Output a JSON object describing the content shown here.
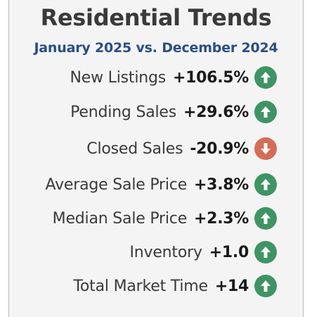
{
  "title": "Residential Trends",
  "subtitle": "January 2025 vs. December 2024",
  "colors": {
    "up": "#3f9463",
    "down": "#d56c56",
    "subtitle": "#2a4e86"
  },
  "metrics": [
    {
      "label": "New Listings",
      "value": "+106.5%",
      "direction": "up",
      "icon": "arrow-up-icon"
    },
    {
      "label": "Pending Sales",
      "value": "+29.6%",
      "direction": "up",
      "icon": "arrow-up-icon"
    },
    {
      "label": "Closed Sales",
      "value": "-20.9%",
      "direction": "down",
      "icon": "arrow-down-icon"
    },
    {
      "label": "Average Sale Price",
      "value": "+3.8%",
      "direction": "up",
      "icon": "arrow-up-icon"
    },
    {
      "label": "Median Sale Price",
      "value": "+2.3%",
      "direction": "up",
      "icon": "arrow-up-icon"
    },
    {
      "label": "Inventory",
      "value": "+1.0",
      "direction": "up",
      "icon": "arrow-up-icon"
    },
    {
      "label": "Total Market Time",
      "value": "+14",
      "direction": "up",
      "icon": "arrow-up-icon"
    }
  ]
}
